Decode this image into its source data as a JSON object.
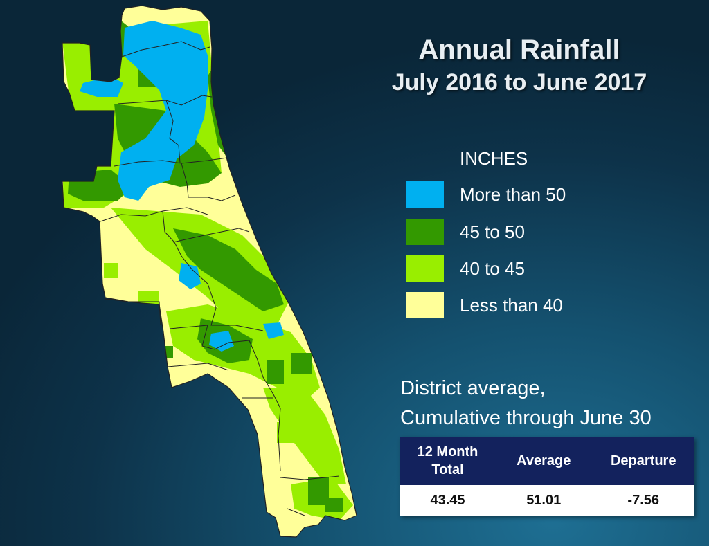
{
  "title": "Annual Rainfall",
  "subtitle": "July 2016 to June 2017",
  "legend": {
    "heading": "INCHES",
    "items": [
      {
        "label": "More than 50",
        "color": "#00b0f0"
      },
      {
        "label": "45 to 50",
        "color": "#339900"
      },
      {
        "label": "40 to 45",
        "color": "#99ee00"
      },
      {
        "label": "Less than 40",
        "color": "#ffff99"
      }
    ]
  },
  "summary": {
    "heading_line1": "District average,",
    "heading_line2": "Cumulative through June 30",
    "columns": [
      "12 Month Total",
      "Average",
      "Departure"
    ],
    "values": [
      "43.45",
      "51.01",
      "-7.56"
    ]
  },
  "colors": {
    "background": "#0d3249",
    "table_header": "#13225d",
    "county_lines": "#222222"
  }
}
